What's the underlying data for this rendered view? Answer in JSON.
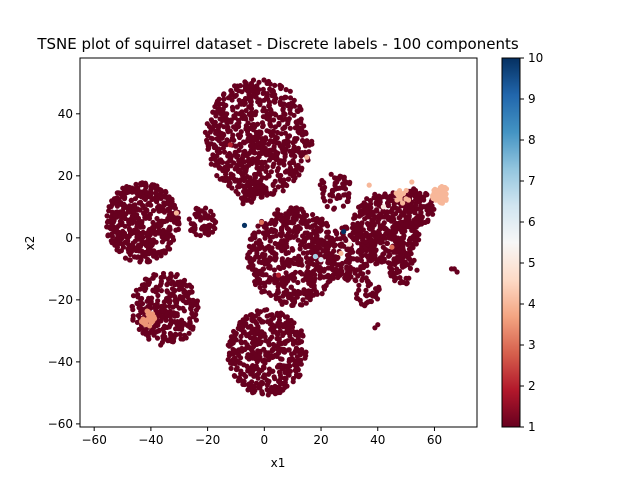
{
  "chart_data": {
    "type": "scatter",
    "title": "TSNE plot of squirrel dataset - Discrete labels - 100 components",
    "xlabel": "x1",
    "ylabel": "x2",
    "xlim": [
      -65,
      75
    ],
    "ylim": [
      -61,
      58
    ],
    "xticks": [
      -60,
      -40,
      -20,
      0,
      20,
      40,
      60
    ],
    "yticks": [
      -60,
      -40,
      -20,
      0,
      20,
      40
    ],
    "colorbar": {
      "label": "",
      "range": [
        1,
        10
      ],
      "ticks": [
        1,
        2,
        3,
        4,
        5,
        6,
        7,
        8,
        9,
        10
      ],
      "colormap": "RdBu",
      "stops": [
        "#67001f",
        "#b2182b",
        "#d6604d",
        "#f4a582",
        "#fddbc7",
        "#f7f7f7",
        "#d1e5f0",
        "#92c5de",
        "#4393c3",
        "#2166ac",
        "#053061"
      ]
    },
    "clusters": [
      {
        "cx": -2,
        "cy": 32,
        "r": 19,
        "n": 700,
        "label": 1
      },
      {
        "cx": -43,
        "cy": 5,
        "r": 13,
        "n": 480,
        "label": 1
      },
      {
        "cx": -22,
        "cy": 5,
        "r": 5,
        "n": 60,
        "label": 1
      },
      {
        "cx": -35,
        "cy": -23,
        "r": 12,
        "n": 320,
        "label": 1
      },
      {
        "cx": 1,
        "cy": -37,
        "r": 14,
        "n": 450,
        "label": 1
      },
      {
        "cx": 10,
        "cy": -6,
        "r": 16,
        "n": 560,
        "label": 1
      },
      {
        "cx": 30,
        "cy": -5,
        "r": 9,
        "n": 160,
        "label": 1
      },
      {
        "cx": 43,
        "cy": 3,
        "r": 12,
        "n": 380,
        "label": 1
      },
      {
        "cx": 54,
        "cy": 10,
        "r": 6,
        "n": 90,
        "label": 1
      },
      {
        "cx": 49,
        "cy": -10,
        "r": 5,
        "n": 50,
        "label": 1
      },
      {
        "cx": 36,
        "cy": -17,
        "r": 5,
        "n": 40,
        "label": 1
      },
      {
        "cx": -5,
        "cy": 15,
        "r": 5,
        "n": 40,
        "label": 1
      },
      {
        "cx": 25,
        "cy": 15,
        "r": 6,
        "n": 50,
        "label": 1
      }
    ],
    "outliers": [
      {
        "x": 67,
        "y": -10,
        "label": 1
      },
      {
        "x": 68,
        "y": -11,
        "label": 1
      },
      {
        "x": 66,
        "y": -10,
        "label": 1
      },
      {
        "x": 40,
        "y": -28,
        "label": 1
      },
      {
        "x": 39,
        "y": -29,
        "label": 1
      },
      {
        "x": 28,
        "y": 2,
        "label": 10
      },
      {
        "x": -7,
        "y": 4,
        "label": 10
      },
      {
        "x": 20,
        "y": -7,
        "label": 6
      },
      {
        "x": 18,
        "y": -6,
        "label": 7
      },
      {
        "x": 15,
        "y": 26,
        "label": 4
      },
      {
        "x": 27,
        "y": -5,
        "label": 4
      },
      {
        "x": 30,
        "y": -2,
        "label": 5
      },
      {
        "x": 42,
        "y": 10,
        "label": 5
      },
      {
        "x": 37,
        "y": 17,
        "label": 4
      },
      {
        "x": -31,
        "y": 8,
        "label": 4
      },
      {
        "x": -1,
        "y": 5,
        "label": 3
      },
      {
        "x": 52,
        "y": 18,
        "label": 4
      },
      {
        "x": 45,
        "y": -3,
        "label": 3
      },
      {
        "x": 5,
        "y": -12,
        "label": 2
      },
      {
        "x": -12,
        "y": 30,
        "label": 2
      }
    ],
    "highlight_clusters": [
      {
        "cx": 62,
        "cy": 14,
        "r": 3,
        "n": 55,
        "label": 4
      },
      {
        "cx": -41,
        "cy": -26,
        "r": 2.5,
        "n": 35,
        "label": 3.5
      },
      {
        "cx": 49,
        "cy": 14,
        "r": 3,
        "n": 12,
        "label": 4
      }
    ]
  }
}
